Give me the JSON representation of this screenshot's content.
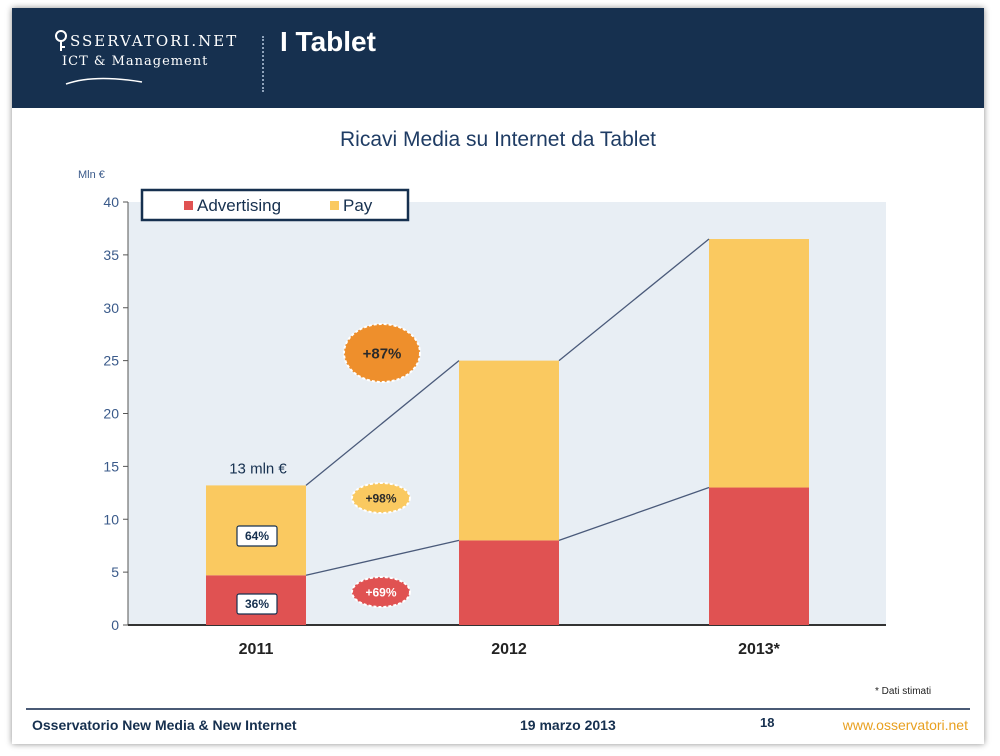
{
  "header": {
    "logo_main": "SSERVATORI.NET",
    "logo_sub": "ICT & Management",
    "title": "I Tablet"
  },
  "chart_data": {
    "type": "bar",
    "stacked": true,
    "title": "Ricavi Media su Internet da Tablet",
    "ylabel": "Mln €",
    "xlabel": "",
    "ylim": [
      0,
      40
    ],
    "yticks": [
      0,
      5,
      10,
      15,
      20,
      25,
      30,
      35,
      40
    ],
    "categories": [
      "2011",
      "2012",
      "2013*"
    ],
    "series": [
      {
        "name": "Advertising",
        "color": "#e05252",
        "values": [
          4.7,
          8,
          13
        ]
      },
      {
        "name": "Pay",
        "color": "#fac960",
        "values": [
          8.5,
          17,
          23.5
        ]
      }
    ],
    "totals": [
      13.2,
      25,
      36.5
    ],
    "legend_position": "top-left",
    "annotations": {
      "total_label_2011": "13 mln €",
      "share_pay_2011": "64%",
      "share_adv_2011": "36%",
      "growth_total": "+87%",
      "growth_pay": "+98%",
      "growth_adv": "+69%"
    },
    "colors": {
      "plot_bg": "#e8eef4",
      "growth_total_bg": "#ee8f2c",
      "growth_pay_bg": "#fac960",
      "growth_adv_bg": "#e05252",
      "axis_text": "#3a5a8a"
    }
  },
  "footnote": "* Dati stimati",
  "footer": {
    "left": "Osservatorio New Media & New Internet",
    "date": "19 marzo 2013",
    "page": "18",
    "url": "www.osservatori.net"
  }
}
